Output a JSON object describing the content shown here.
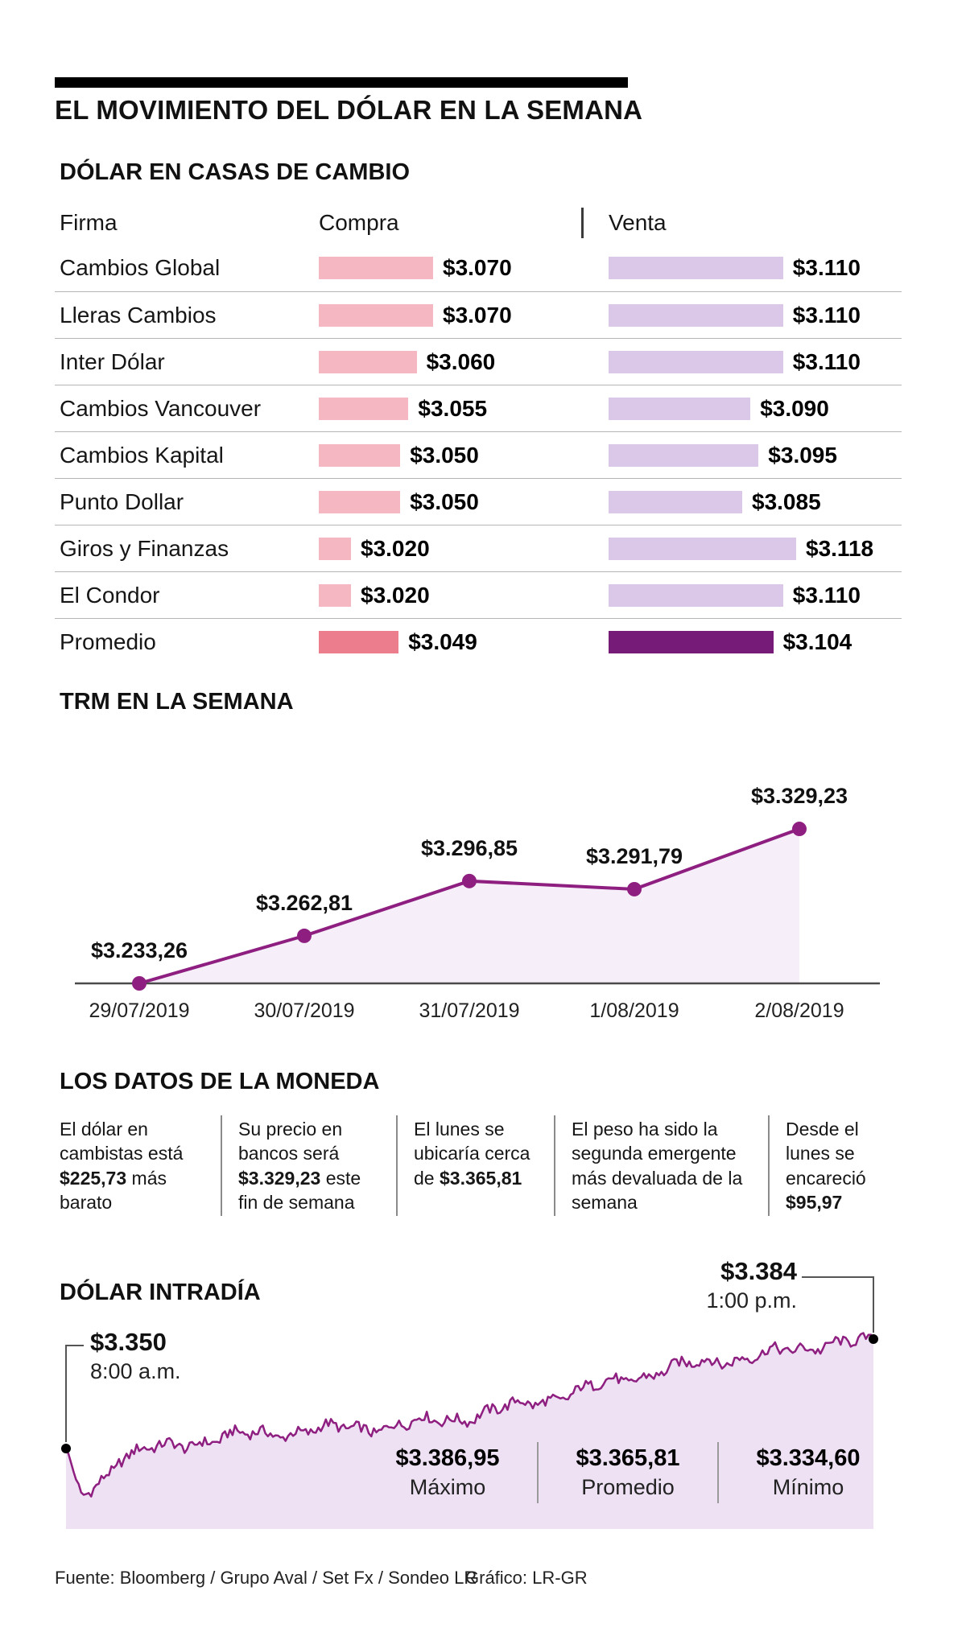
{
  "page": {
    "title": "EL MOVIMIENTO DEL DÓLAR EN LA SEMANA"
  },
  "casas": {
    "heading": "DÓLAR EN CASAS DE CAMBIO",
    "col_firma": "Firma",
    "col_compra": "Compra",
    "col_venta": "Venta"
  },
  "trm": {
    "heading": "TRM EN LA SEMANA"
  },
  "datos": {
    "heading": "LOS DATOS DE LA MONEDA",
    "cards": [
      {
        "pre": "El dólar en cambistas está ",
        "strong": "$225,73",
        "post": " más barato"
      },
      {
        "pre": "Su precio en bancos será ",
        "strong": "$3.329,23",
        "post": " este fin de semana"
      },
      {
        "pre": "El lunes se ubicaría cerca de ",
        "strong": "$3.365,81",
        "post": ""
      },
      {
        "pre": "El peso ha sido la segunda emergente más devaluada de la semana",
        "strong": "",
        "post": ""
      },
      {
        "pre": "Desde el lunes se encareció ",
        "strong": "$95,97",
        "post": ""
      }
    ]
  },
  "intradia": {
    "heading": "DÓLAR INTRADÍA",
    "start_value": "$3.350",
    "start_time": "8:00 a.m.",
    "end_value": "$3.384",
    "end_time": "1:00 p.m.",
    "stats": [
      {
        "value": "$3.386,95",
        "label": "Máximo"
      },
      {
        "value": "$3.365,81",
        "label": "Promedio"
      },
      {
        "value": "$3.334,60",
        "label": "Mínimo"
      }
    ]
  },
  "footer": {
    "fuente": "Fuente: Bloomberg / Grupo Aval / Set Fx / Sondeo LR",
    "grafico": "Gráfico: LR-GR"
  },
  "colors": {
    "compra_bar": "#f5b7c1",
    "compra_bar_avg": "#ec7d8d",
    "venta_bar": "#dbc8e9",
    "venta_bar_avg": "#771b79",
    "line": "#8e1f80",
    "trm_fill": "#f6eff9",
    "intradia_fill": "#ede1f3"
  },
  "chart_data": [
    {
      "type": "bar",
      "id": "casas",
      "title": "DÓLAR EN CASAS DE CAMBIO",
      "columns": [
        "Firma",
        "Compra",
        "Venta"
      ],
      "rows": [
        {
          "firma": "Cambios Global",
          "compra": 3070,
          "venta": 3110,
          "compra_label": "$3.070",
          "venta_label": "$3.110",
          "promedio": false
        },
        {
          "firma": "Lleras Cambios",
          "compra": 3070,
          "venta": 3110,
          "compra_label": "$3.070",
          "venta_label": "$3.110",
          "promedio": false
        },
        {
          "firma": "Inter Dólar",
          "compra": 3060,
          "venta": 3110,
          "compra_label": "$3.060",
          "venta_label": "$3.110",
          "promedio": false
        },
        {
          "firma": "Cambios Vancouver",
          "compra": 3055,
          "venta": 3090,
          "compra_label": "$3.055",
          "venta_label": "$3.090",
          "promedio": false
        },
        {
          "firma": "Cambios Kapital",
          "compra": 3050,
          "venta": 3095,
          "compra_label": "$3.050",
          "venta_label": "$3.095",
          "promedio": false
        },
        {
          "firma": "Punto Dollar",
          "compra": 3050,
          "venta": 3085,
          "compra_label": "$3.050",
          "venta_label": "$3.085",
          "promedio": false
        },
        {
          "firma": "Giros y Finanzas",
          "compra": 3020,
          "venta": 3118,
          "compra_label": "$3.020",
          "venta_label": "$3.118",
          "promedio": false
        },
        {
          "firma": "El Condor",
          "compra": 3020,
          "venta": 3110,
          "compra_label": "$3.020",
          "venta_label": "$3.110",
          "promedio": false
        },
        {
          "firma": "Promedio",
          "compra": 3049,
          "venta": 3104,
          "compra_label": "$3.049",
          "venta_label": "$3.104",
          "promedio": true
        }
      ]
    },
    {
      "type": "area",
      "id": "trm",
      "title": "TRM EN LA SEMANA",
      "x": [
        "29/07/2019",
        "30/07/2019",
        "31/07/2019",
        "1/08/2019",
        "2/08/2019"
      ],
      "values": [
        3233.26,
        3262.81,
        3296.85,
        3291.79,
        3329.23
      ],
      "labels": [
        "$3.233,26",
        "$3.262,81",
        "$3.296,85",
        "$3.291,79",
        "$3.329,23"
      ],
      "legend_position": "none",
      "grid": false
    },
    {
      "type": "area",
      "id": "intradia",
      "title": "DÓLAR INTRADÍA",
      "open": 3350,
      "close": 3384,
      "max": 3386.95,
      "avg": 3365.81,
      "min": 3334.6,
      "open_time": "8:00 a.m.",
      "close_time": "1:00 p.m."
    }
  ]
}
